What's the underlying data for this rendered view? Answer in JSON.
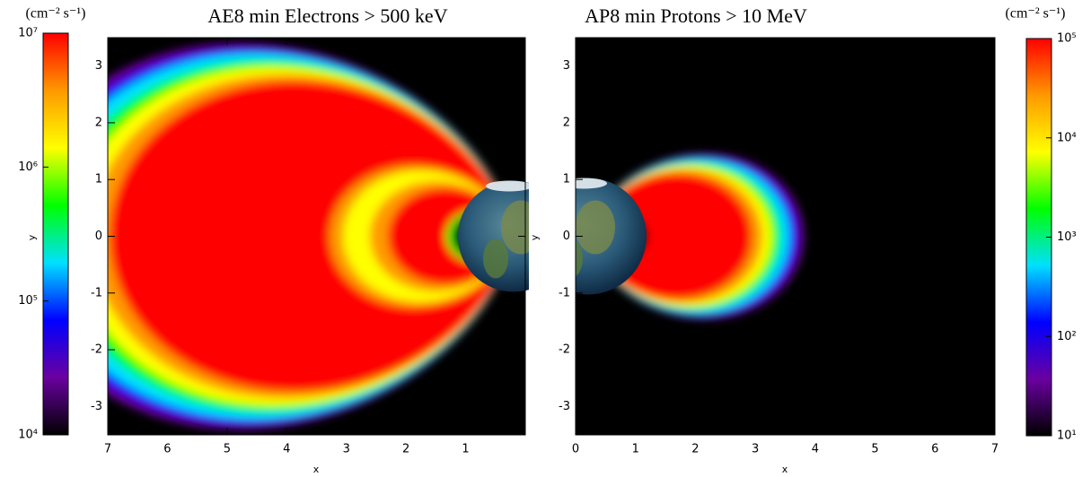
{
  "chart_data": [
    {
      "type": "heatmap",
      "title": "AE8 min  Electrons > 500 keV",
      "xlabel": "x",
      "ylabel": "y",
      "xlim": [
        7,
        0
      ],
      "ylim": [
        -3.5,
        3.5
      ],
      "xticks": [
        7,
        6,
        5,
        4,
        3,
        2,
        1
      ],
      "yticks": [
        -3,
        -2,
        -1,
        0,
        1,
        2,
        3
      ],
      "colorbar": {
        "label": "(cm⁻² s⁻¹)",
        "scale": "log",
        "side": "left",
        "lim": [
          10000,
          10000000
        ],
        "ticks": [
          {
            "value": 10000,
            "label": "10⁴"
          },
          {
            "value": 100000,
            "label": "10⁵"
          },
          {
            "value": 1000000,
            "label": "10⁶"
          },
          {
            "value": 10000000,
            "label": "10⁷"
          }
        ]
      },
      "colormap": [
        "#000000",
        "#6a00a0",
        "#0000ff",
        "#00e0ff",
        "#00ff00",
        "#ffff00",
        "#ff9900",
        "#ff0000"
      ]
    },
    {
      "type": "heatmap",
      "title": "AP8 min   Protons > 10 MeV",
      "xlabel": "x",
      "ylabel": "y",
      "xlim": [
        0,
        7
      ],
      "ylim": [
        -3.5,
        3.5
      ],
      "xticks": [
        0,
        1,
        2,
        3,
        4,
        5,
        6,
        7
      ],
      "yticks": [
        -3,
        -2,
        -1,
        0,
        1,
        2,
        3
      ],
      "colorbar": {
        "label": "(cm⁻² s⁻¹)",
        "scale": "log",
        "side": "right",
        "lim": [
          10,
          100000
        ],
        "ticks": [
          {
            "value": 10,
            "label": "10¹"
          },
          {
            "value": 100,
            "label": "10²"
          },
          {
            "value": 1000,
            "label": "10³"
          },
          {
            "value": 10000,
            "label": "10⁴"
          },
          {
            "value": 100000,
            "label": "10⁵"
          }
        ]
      },
      "colormap": [
        "#000000",
        "#6a00a0",
        "#0000ff",
        "#00e0ff",
        "#00ff00",
        "#ffff00",
        "#ff9900",
        "#ff0000"
      ]
    }
  ]
}
